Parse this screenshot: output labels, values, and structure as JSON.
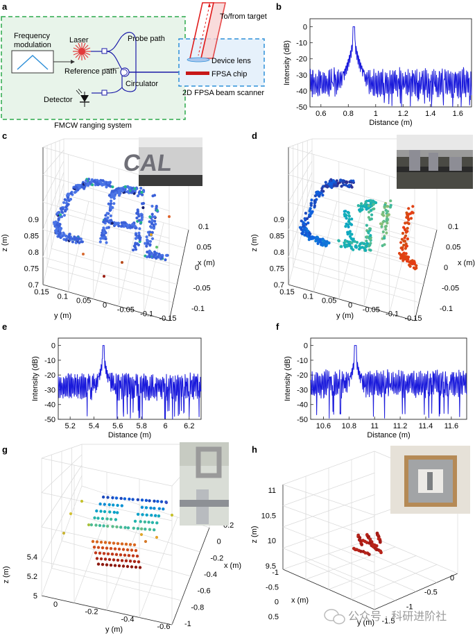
{
  "panels": {
    "a": {
      "label": "a",
      "box_title": "FMCW ranging system",
      "freq_mod": "Frequency\nmodulation",
      "laser": "Laser",
      "probe_path": "Probe path",
      "reference_path": "Reference path",
      "circulator": "Circulator",
      "detector": "Detector",
      "to_from_target": "To/from target",
      "device_lens": "Device lens",
      "fpsa_chip": "FPSA chip",
      "scanner_title": "2D FPSA beam scanner",
      "colors": {
        "green_box": "#2aa84a",
        "green_fill": "#e8f4ea",
        "blue_box": "#2d8fd8",
        "blue_fill": "#e6f1fb",
        "beam": "#e01b1b",
        "laser": "#e23b3b"
      }
    },
    "b": {
      "label": "b",
      "chart_data": {
        "type": "line",
        "xlabel": "Distance (m)",
        "ylabel": "Intensity (dB)",
        "xlim": [
          0.52,
          1.7
        ],
        "ylim": [
          -50,
          5
        ],
        "xticks": [
          "0.6",
          "0.8",
          "1",
          "1.2",
          "1.4",
          "1.6"
        ],
        "xtick_values": [
          0.6,
          0.8,
          1.0,
          1.2,
          1.4,
          1.6
        ],
        "yticks": [
          "0",
          "-10",
          "-20",
          "-30",
          "-40",
          "-50"
        ],
        "ytick_values": [
          0,
          -10,
          -20,
          -30,
          -40,
          -50
        ],
        "peak": [
          0.84,
          0
        ],
        "noise_floor": -33,
        "color": "#1a1adb"
      }
    },
    "c": {
      "label": "c",
      "zlabel": "z (m)",
      "ylabel": "y (m)",
      "xlabel": "x (m)",
      "zticks": [
        "0.9",
        "0.85",
        "0.8",
        "0.75",
        "0.7"
      ],
      "yticks": [
        "0.15",
        "0.1",
        "0.05",
        "0",
        "-0.05",
        "-0.1",
        "-0.15"
      ],
      "xticks": [
        "0.1",
        "0.05",
        "0",
        "-0.05",
        "-0.1"
      ],
      "inset_text": "CAL"
    },
    "d": {
      "label": "d",
      "zlabel": "z (m)",
      "ylabel": "y (m)",
      "xlabel": "x (m)",
      "zticks": [
        "0.9",
        "0.85",
        "0.8",
        "0.75",
        "0.7"
      ],
      "yticks": [
        "0.15",
        "0.1",
        "0.05",
        "0",
        "-0.05",
        "-0.1",
        "-0.15"
      ],
      "xticks": [
        "0.1",
        "0.05",
        "0",
        "-0.05",
        "-0.1"
      ]
    },
    "e": {
      "label": "e",
      "chart_data": {
        "type": "line",
        "xlabel": "Distance (m)",
        "ylabel": "Intensity (dB)",
        "xlim": [
          5.1,
          6.3
        ],
        "ylim": [
          -50,
          5
        ],
        "xticks": [
          "5.2",
          "5.4",
          "5.6",
          "5.8",
          "6",
          "6.2"
        ],
        "xtick_values": [
          5.2,
          5.4,
          5.6,
          5.8,
          6.0,
          6.2
        ],
        "yticks": [
          "0",
          "-10",
          "-20",
          "-30",
          "-40",
          "-50"
        ],
        "ytick_values": [
          0,
          -10,
          -20,
          -30,
          -40,
          -50
        ],
        "peak": [
          5.48,
          0
        ],
        "noise_floor": -26,
        "color": "#1a1adb"
      }
    },
    "f": {
      "label": "f",
      "chart_data": {
        "type": "line",
        "xlabel": "Distance (m)",
        "ylabel": "Intensity (dB)",
        "xlim": [
          10.5,
          11.72
        ],
        "ylim": [
          -50,
          5
        ],
        "xticks": [
          "10.6",
          "10.8",
          "11",
          "11.2",
          "11.4",
          "11.6"
        ],
        "xtick_values": [
          10.6,
          10.8,
          11.0,
          11.2,
          11.4,
          11.6
        ],
        "yticks": [
          "0",
          "-10",
          "-20",
          "-30",
          "-40",
          "-50"
        ],
        "ytick_values": [
          0,
          -10,
          -20,
          -30,
          -40,
          -50
        ],
        "peak": [
          10.85,
          0
        ],
        "noise_floor": -24,
        "color": "#1a1adb"
      }
    },
    "g": {
      "label": "g",
      "zlabel": "z (m)",
      "ylabel": "y (m)",
      "xlabel": "x (m)",
      "zticks": [
        "5.4",
        "5.2",
        "5"
      ],
      "yticks": [
        "0",
        "-0.2",
        "-0.4",
        "-0.6"
      ],
      "xticks": [
        "0.2",
        "0",
        "-0.2",
        "-0.4",
        "-0.6",
        "-0.8",
        "-1"
      ]
    },
    "h": {
      "label": "h",
      "zlabel": "z (m)",
      "ylabel": "y (m)",
      "xlabel": "x (m)",
      "zticks": [
        "11",
        "10.5",
        "10",
        "9.5"
      ],
      "xticks": [
        "-1",
        "-0.5",
        "0",
        "0.5"
      ],
      "yticks": [
        "0",
        "-0.5",
        "-1",
        "-1.5"
      ]
    }
  },
  "watermark": "公众号 · 科研进阶社"
}
